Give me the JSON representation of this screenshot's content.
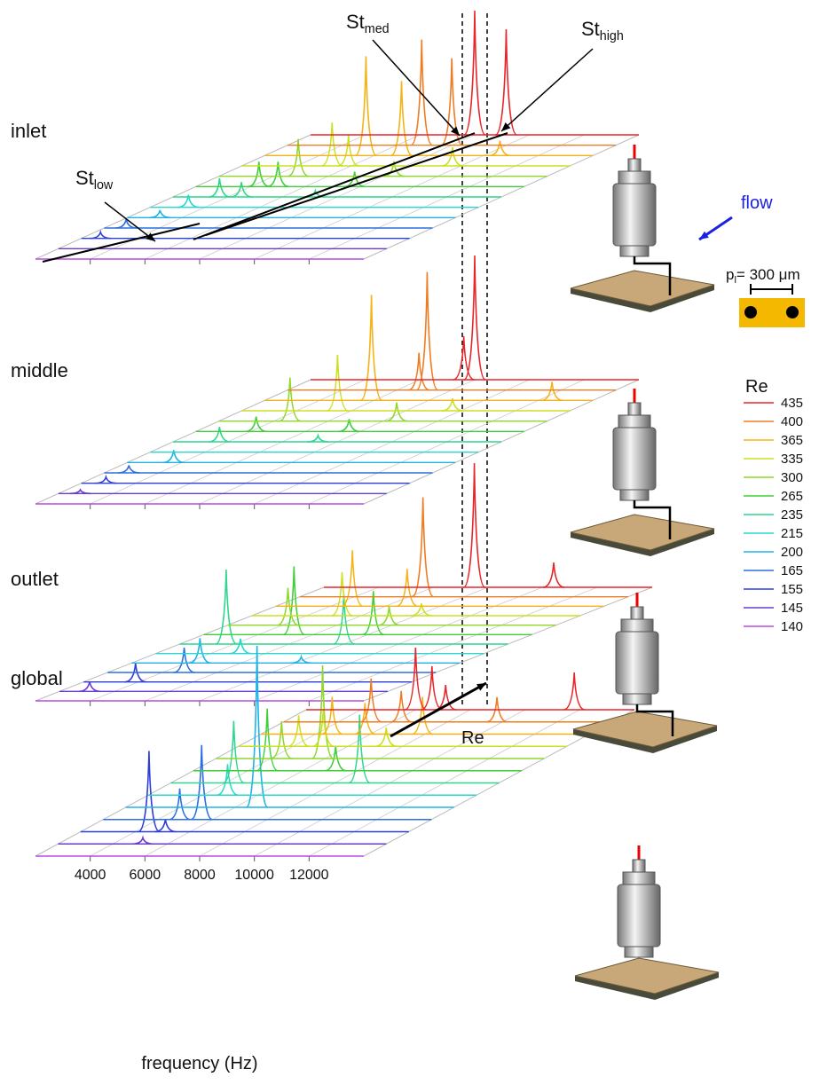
{
  "chart_data": {
    "type": "waterfall",
    "xlabel": "frequency (Hz)",
    "xlim": [
      2000,
      14000
    ],
    "xticks": [
      4000,
      6000,
      8000,
      10000,
      12000
    ],
    "legend_title": "Re",
    "series": [
      {
        "name": "435",
        "color": "#e8262a"
      },
      {
        "name": "400",
        "color": "#f07c22"
      },
      {
        "name": "365",
        "color": "#f5b316"
      },
      {
        "name": "335",
        "color": "#cde021"
      },
      {
        "name": "300",
        "color": "#8ed82a"
      },
      {
        "name": "265",
        "color": "#3fcf3a"
      },
      {
        "name": "235",
        "color": "#2fd68f"
      },
      {
        "name": "215",
        "color": "#27d8d0"
      },
      {
        "name": "200",
        "color": "#1eb3e8"
      },
      {
        "name": "165",
        "color": "#2b6fe0"
      },
      {
        "name": "155",
        "color": "#2d3ed8"
      },
      {
        "name": "145",
        "color": "#6a3cd0"
      },
      {
        "name": "140",
        "color": "#b84ce0"
      }
    ],
    "panels": [
      {
        "title": "inlet",
        "peaks": [
          {
            "x": [
              8000,
              9150
            ],
            "values": [
              1.0,
              0.85
            ]
          },
          {
            "x": [
              6900,
              8000
            ],
            "values": [
              0.85,
              0.7
            ]
          },
          {
            "x": [
              5700,
              7000,
              10600
            ],
            "values": [
              0.8,
              0.6,
              0.12
            ]
          },
          {
            "x": [
              5300,
              5900,
              9700
            ],
            "values": [
              0.35,
              0.25,
              0.15
            ]
          },
          {
            "x": [
              4900,
              8400
            ],
            "values": [
              0.3,
              0.12
            ]
          },
          {
            "x": [
              4300,
              5000,
              7800
            ],
            "values": [
              0.2,
              0.2,
              0.12
            ]
          },
          {
            "x": [
              3700,
              4500,
              7200
            ],
            "values": [
              0.15,
              0.12,
              0.05
            ]
          },
          {
            "x": [
              3400
            ],
            "values": [
              0.1
            ]
          },
          {
            "x": [
              3200
            ],
            "values": [
              0.06
            ]
          },
          {
            "x": [
              2800
            ],
            "values": [
              0.07
            ]
          },
          {
            "x": [
              2700
            ],
            "values": [
              0.05
            ]
          },
          {
            "x": [],
            "values": []
          },
          {
            "x": [],
            "values": []
          }
        ]
      },
      {
        "title": "middle",
        "peaks": [
          {
            "x": [
              7600,
              8000
            ],
            "values": [
              0.35,
              1.0
            ]
          },
          {
            "x": [
              6800,
              7100
            ],
            "values": [
              0.3,
              0.95
            ]
          },
          {
            "x": [
              5900,
              12500
            ],
            "values": [
              0.85,
              0.15
            ]
          },
          {
            "x": [
              5500,
              9700
            ],
            "values": [
              0.45,
              0.1
            ]
          },
          {
            "x": [
              4600,
              8500
            ],
            "values": [
              0.35,
              0.15
            ]
          },
          {
            "x": [
              4200,
              7600
            ],
            "values": [
              0.12,
              0.1
            ]
          },
          {
            "x": [
              3700,
              7300
            ],
            "values": [
              0.12,
              0.05
            ]
          },
          {
            "x": [],
            "values": []
          },
          {
            "x": [
              3700
            ],
            "values": [
              0.1
            ]
          },
          {
            "x": [
              2900
            ],
            "values": [
              0.06
            ]
          },
          {
            "x": [
              2900
            ],
            "values": [
              0.05
            ]
          },
          {
            "x": [
              2800
            ],
            "values": [
              0.03
            ]
          },
          {
            "x": [],
            "values": []
          }
        ]
      },
      {
        "title": "outlet",
        "peaks": [
          {
            "x": [
              7500,
              10400
            ],
            "values": [
              1.0,
              0.2
            ]
          },
          {
            "x": [
              6500
            ],
            "values": [
              0.8
            ]
          },
          {
            "x": [
              4800,
              6800
            ],
            "values": [
              0.45,
              0.3
            ]
          },
          {
            "x": [
              5300,
              8200
            ],
            "values": [
              0.35,
              0.1
            ]
          },
          {
            "x": [
              4200,
              7900
            ],
            "values": [
              0.3,
              0.15
            ]
          },
          {
            "x": [
              5300,
              8200
            ],
            "values": [
              0.55,
              0.35
            ]
          },
          {
            "x": [
              3700,
              8000
            ],
            "values": [
              0.6,
              0.4
            ]
          },
          {
            "x": [
              5100
            ],
            "values": [
              0.12
            ]
          },
          {
            "x": [
              4500,
              8200
            ],
            "values": [
              0.2,
              0.05
            ]
          },
          {
            "x": [
              4800
            ],
            "values": [
              0.2
            ]
          },
          {
            "x": [
              3900
            ],
            "values": [
              0.15
            ]
          },
          {
            "x": [
              3100
            ],
            "values": [
              0.08
            ]
          },
          {
            "x": [],
            "values": []
          }
        ]
      },
      {
        "title": "global",
        "peaks": [
          {
            "x": [
              6000,
              6600,
              7100,
              11800
            ],
            "values": [
              0.5,
              0.35,
              0.2,
              0.3
            ]
          },
          {
            "x": [
              5200,
              6300,
              9800
            ],
            "values": [
              0.35,
              0.25,
              0.2
            ]
          },
          {
            "x": [
              4600,
              5800,
              7900
            ],
            "values": [
              0.3,
              0.25,
              0.3
            ]
          },
          {
            "x": [
              4200,
              5100,
              7400
            ],
            "values": [
              0.25,
              0.3,
              0.15
            ]
          },
          {
            "x": [
              4400,
              5900
            ],
            "values": [
              0.3,
              0.75
            ]
          },
          {
            "x": [
              4700,
              7200
            ],
            "values": [
              0.5,
              0.2
            ]
          },
          {
            "x": [
              4300,
              8900
            ],
            "values": [
              0.5,
              0.55
            ]
          },
          {
            "x": [
              4900
            ],
            "values": [
              0.25
            ]
          },
          {
            "x": [
              6800
            ],
            "values": [
              1.3
            ]
          },
          {
            "x": [
              4800,
              5600
            ],
            "values": [
              0.25,
              0.6
            ]
          },
          {
            "x": [
              4500,
              5100
            ],
            "values": [
              0.65,
              0.1
            ]
          },
          {
            "x": [
              5100
            ],
            "values": [
              0.05
            ]
          },
          {
            "x": [],
            "values": []
          }
        ]
      }
    ],
    "annotations": [
      {
        "text": "St",
        "sub": "med"
      },
      {
        "text": "St",
        "sub": "high"
      },
      {
        "text": "St",
        "sub": "low"
      }
    ],
    "flow_label": "flow",
    "re_arrow_label": "Re",
    "pitch_label": {
      "text": "p",
      "sub": "l",
      "rest": "= 300 μm"
    }
  }
}
